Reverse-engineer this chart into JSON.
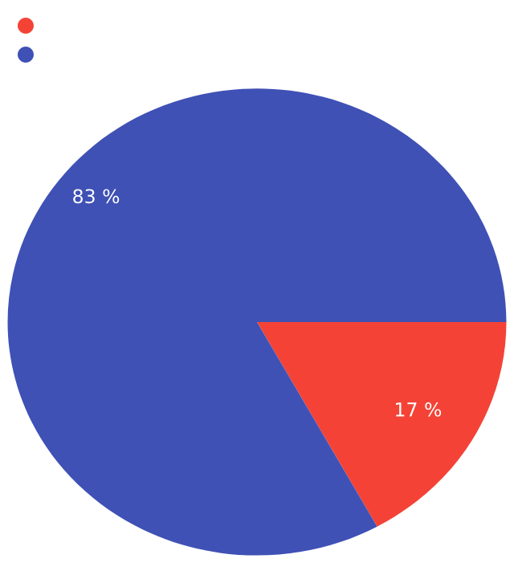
{
  "chart_data": {
    "type": "pie",
    "categories": [
      null,
      null
    ],
    "values": [
      17,
      83
    ],
    "colors": [
      "#f44336",
      "#3f51b5"
    ],
    "value_labels": [
      "17 %",
      "83 %"
    ]
  }
}
